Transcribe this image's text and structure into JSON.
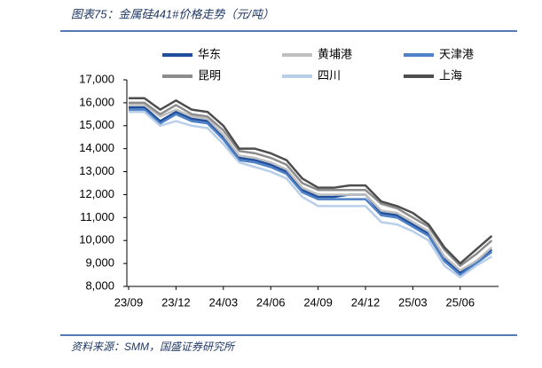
{
  "chart_data": {
    "type": "line",
    "title": "图表75：金属硅441#价格走势（元/吨）",
    "source": "资料来源：SMM，国盛证券研究所",
    "categories": [
      "23/09",
      null,
      null,
      "23/12",
      null,
      null,
      "24/03",
      null,
      null,
      "24/06",
      null,
      null,
      "24/09",
      null,
      null,
      "24/12",
      null,
      null,
      "25/03",
      null,
      null,
      "25/06",
      null,
      null
    ],
    "ylim": [
      8000,
      17000
    ],
    "yticks": [
      {
        "value": 8000,
        "label": "8,000"
      },
      {
        "value": 9000,
        "label": "9,000"
      },
      {
        "value": 10000,
        "label": "10,000"
      },
      {
        "value": 11000,
        "label": "11,000"
      },
      {
        "value": 12000,
        "label": "12,000"
      },
      {
        "value": 13000,
        "label": "13,000"
      },
      {
        "value": 14000,
        "label": "14,000"
      },
      {
        "value": 15000,
        "label": "15,000"
      },
      {
        "value": 16000,
        "label": "16,000"
      },
      {
        "value": 17000,
        "label": "17,000"
      }
    ],
    "grid": false,
    "series": [
      {
        "name": "华东",
        "color": "#1f4e9c",
        "values": [
          15800,
          15800,
          15200,
          15600,
          15300,
          15200,
          14500,
          13600,
          13500,
          13300,
          13000,
          12200,
          11900,
          11900,
          12000,
          12000,
          11200,
          11100,
          10700,
          10300,
          9200,
          8600,
          9100,
          9600
        ]
      },
      {
        "name": "黄埔港",
        "color": "#bfbfbf",
        "values": [
          15900,
          15900,
          15400,
          15700,
          15400,
          15300,
          14600,
          13700,
          13600,
          13400,
          13100,
          12300,
          12000,
          12000,
          12000,
          12000,
          11300,
          11200,
          10800,
          10400,
          9300,
          8700,
          9100,
          9700
        ]
      },
      {
        "name": "天津港",
        "color": "#4f81c7",
        "values": [
          15700,
          15700,
          15100,
          15500,
          15200,
          15100,
          14400,
          13500,
          13400,
          13200,
          12900,
          12100,
          11800,
          11800,
          11800,
          11800,
          11100,
          11000,
          10600,
          10200,
          9100,
          8500,
          9000,
          9500
        ]
      },
      {
        "name": "昆明",
        "color": "#8c8c8c",
        "values": [
          16000,
          16000,
          15500,
          15900,
          15500,
          15400,
          14800,
          13900,
          13800,
          13600,
          13300,
          12500,
          12200,
          12200,
          12200,
          12200,
          11600,
          11400,
          11000,
          10600,
          9600,
          8900,
          9400,
          10000
        ]
      },
      {
        "name": "四川",
        "color": "#b9cfe9",
        "values": [
          15600,
          15600,
          15000,
          15200,
          15000,
          14900,
          14200,
          13400,
          13200,
          13000,
          12700,
          11900,
          11500,
          11500,
          11500,
          11500,
          10800,
          10700,
          10400,
          10000,
          8900,
          8400,
          8900,
          9300
        ]
      },
      {
        "name": "上海",
        "color": "#4d4d4d",
        "values": [
          16200,
          16200,
          15700,
          16100,
          15700,
          15600,
          15000,
          14000,
          14000,
          13800,
          13500,
          12700,
          12300,
          12300,
          12400,
          12400,
          11700,
          11500,
          11200,
          10700,
          9700,
          9000,
          9600,
          10200
        ]
      }
    ]
  }
}
